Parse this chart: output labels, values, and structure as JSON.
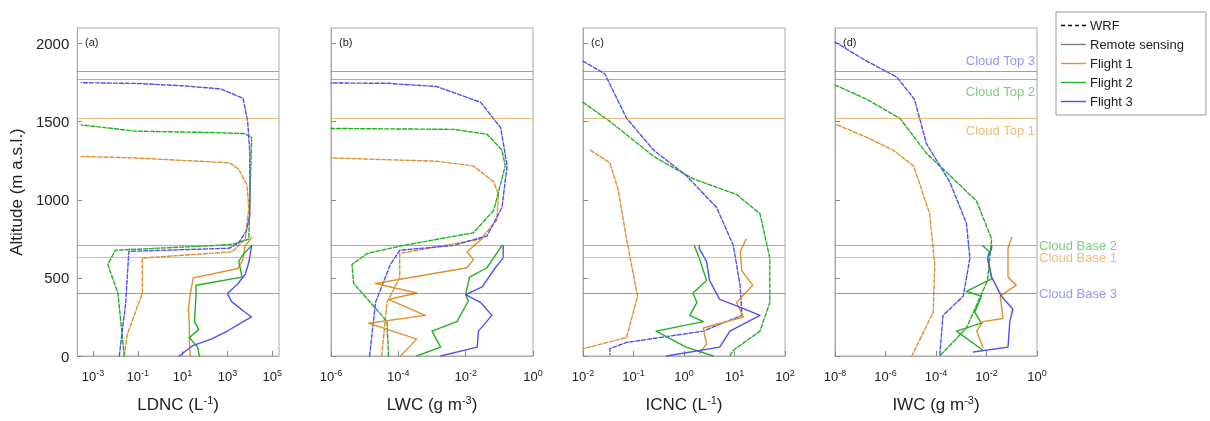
{
  "chart_data": [
    {
      "type": "line",
      "annotations": [
        "(a)"
      ],
      "xlabel": "LDNC (L$^{-1}$)",
      "ylabel": "Altitude (m a.s.l.)",
      "log": "x",
      "marker": "none",
      "grid": false,
      "legend": false,
      "xlim": [
        0.0002,
        200000
      ],
      "xticks": [
        {
          "value": 0.001,
          "label": "10$^{-3}$"
        },
        {
          "value": 0.1,
          "label": "10$^{-1}$"
        },
        {
          "value": 10,
          "label": "10$^{1}$"
        },
        {
          "value": 1000,
          "label": "10$^{3}$"
        },
        {
          "value": 100000,
          "label": "10$^{5}$"
        }
      ],
      "ylim": [
        0,
        2100
      ],
      "yticks": [
        0,
        500,
        1000,
        1500,
        2000
      ],
      "ref_lines": [
        {
          "axis": "y",
          "value": 1820,
          "color": "#5050f0"
        },
        {
          "axis": "y",
          "value": 1770,
          "color": "#22b022"
        },
        {
          "axis": "y",
          "value": 1520,
          "color": "#e0902c"
        },
        {
          "axis": "y",
          "value": 710,
          "color": "#22b022"
        },
        {
          "axis": "y",
          "value": 630,
          "color": "#e0902c"
        },
        {
          "axis": "y",
          "value": 400,
          "color": "#5050f0"
        }
      ],
      "series": [
        {
          "color": "#e0902c",
          "line_style": "dashed",
          "x": [
            0.025,
            0.034,
            0.16,
            0.16,
            1600,
            6300,
            9000,
            7400,
            3200,
            1200,
            0.07,
            0.0003
          ],
          "values": [
            0,
            138,
            403,
            627,
            667,
            749,
            952,
            1095,
            1196,
            1237,
            1268,
            1278
          ]
        },
        {
          "color": "#22b022",
          "line_style": "dashed",
          "x": [
            0.025,
            0.013,
            0.0046,
            0.01,
            300,
            1700,
            9000,
            12000,
            6000,
            300,
            0.07,
            0.0003
          ],
          "values": [
            0,
            403,
            586,
            677,
            708,
            715,
            749,
            1400,
            1424,
            1430,
            1440,
            1480
          ]
        },
        {
          "color": "#5050f0",
          "line_style": "dashed",
          "x": [
            0.015,
            0.022,
            0.029,
            0.04,
            1200,
            3000,
            7000,
            10000,
            10000,
            8000,
            5000,
            500,
            10,
            0.1,
            0.0003
          ],
          "values": [
            0,
            200,
            340,
            670,
            690,
            720,
            800,
            900,
            1300,
            1500,
            1650,
            1710,
            1730,
            1745,
            1750
          ]
        },
        {
          "color": "#e0902c",
          "line_style": "solid",
          "x": [
            22,
            20,
            20,
            18,
            22,
            30,
            3000,
            5000,
            6000,
            12000
          ],
          "values": [
            0,
            100,
            200,
            300,
            400,
            500,
            560,
            620,
            700,
            760
          ]
        },
        {
          "color": "#22b022",
          "line_style": "solid",
          "x": [
            56,
            47,
            20,
            52,
            34,
            40,
            40,
            4500,
            3200,
            5000,
            12000
          ],
          "values": [
            0,
            57,
            118,
            169,
            220,
            400,
            453,
            505,
            606,
            650,
            708
          ]
        },
        {
          "color": "#5050f0",
          "line_style": "solid",
          "x": [
            7,
            29,
            200,
            1000,
            5000,
            12000,
            5000,
            1500,
            1000,
            3000,
            6300,
            9000,
            12000
          ],
          "values": [
            0,
            67,
            110,
            160,
            220,
            250,
            290,
            350,
            400,
            464,
            525,
            600,
            708
          ]
        }
      ]
    },
    {
      "type": "line",
      "annotations": [
        "(b)"
      ],
      "xlabel": "LWC (g m$^{-3}$)",
      "log": "x",
      "marker": "none",
      "grid": false,
      "legend": false,
      "tick_labels": "x",
      "xlim": [
        1e-06,
        1
      ],
      "xticks": [
        {
          "value": 1e-06,
          "label": "10$^{-6}$"
        },
        {
          "value": 0.0001,
          "label": "10$^{-4}$"
        },
        {
          "value": 0.01,
          "label": "10$^{-2}$"
        },
        {
          "value": 1,
          "label": "10$^{0}$"
        }
      ],
      "ylim": [
        0,
        2100
      ],
      "yticks": [
        0,
        500,
        1000,
        1500,
        2000
      ],
      "ref_lines": [
        {
          "axis": "y",
          "value": 1820,
          "color": "#5050f0"
        },
        {
          "axis": "y",
          "value": 1770,
          "color": "#22b022"
        },
        {
          "axis": "y",
          "value": 1520,
          "color": "#e0902c"
        },
        {
          "axis": "y",
          "value": 710,
          "color": "#22b022"
        },
        {
          "axis": "y",
          "value": 630,
          "color": "#e0902c"
        },
        {
          "axis": "y",
          "value": 400,
          "color": "#5050f0"
        }
      ],
      "series": [
        {
          "color": "#e0902c",
          "line_style": "dashed",
          "x": [
            3.2e-05,
            4.6e-05,
            0.00011,
            0.00011,
            0.00011,
            0.028,
            0.085,
            0.094,
            0.068,
            0.017,
            0.0014,
            1e-06
          ],
          "values": [
            0,
            342,
            505,
            627,
            657,
            749,
            871,
            1034,
            1115,
            1217,
            1247,
            1268
          ]
        },
        {
          "color": "#22b022",
          "line_style": "dashed",
          "x": [
            5.1e-05,
            4.6e-05,
            1.5e-05,
            4.7e-06,
            4.2e-06,
            1.2e-05,
            0.00014,
            0.017,
            0.068,
            0.15,
            0.12,
            0.043,
            0.0044,
            1e-06
          ],
          "values": [
            0,
            220,
            342,
            464,
            586,
            657,
            708,
            789,
            932,
            1217,
            1318,
            1420,
            1451,
            1457
          ]
        },
        {
          "color": "#5050f0",
          "line_style": "dashed",
          "x": [
            1.4e-05,
            2.1e-05,
            5.8e-05,
            0.00011,
            0.0044,
            0.043,
            0.12,
            0.17,
            0.11,
            0.028,
            0.0014,
            4.6e-05,
            1e-06
          ],
          "values": [
            0,
            342,
            586,
            677,
            708,
            769,
            952,
            1217,
            1461,
            1624,
            1725,
            1746,
            1748
          ]
        },
        {
          "color": "#e0902c",
          "line_style": "solid",
          "x": [
            0.000115,
            0.00035,
            1.3e-05,
            0.00063,
            5.1e-05,
            0.00035,
            2.1e-05,
            0.011,
            0.017,
            0.011,
            0.034
          ],
          "values": [
            0,
            108,
            210,
            260,
            362,
            403,
            464,
            565,
            617,
            667,
            759
          ]
        },
        {
          "color": "#22b022",
          "line_style": "solid",
          "x": [
            0.00035,
            0.0018,
            0.001,
            0.0055,
            0.012,
            0.01,
            0.013,
            0.043,
            0.12
          ],
          "values": [
            0,
            57,
            159,
            220,
            352,
            393,
            505,
            565,
            708
          ]
        },
        {
          "color": "#5050f0",
          "line_style": "solid",
          "x": [
            0.0018,
            0.022,
            0.024,
            0.06,
            0.028,
            0.01,
            0.031,
            0.076,
            0.13,
            0.13
          ],
          "values": [
            0,
            57,
            159,
            260,
            342,
            393,
            443,
            565,
            627,
            708
          ]
        }
      ]
    },
    {
      "type": "line",
      "annotations": [
        "(c)"
      ],
      "xlabel": "ICNC (L$^{-1}$)",
      "log": "x",
      "marker": "none",
      "grid": false,
      "legend": false,
      "tick_labels": "x",
      "xlim": [
        0.01,
        100
      ],
      "xticks": [
        {
          "value": 0.01,
          "label": "10$^{-2}$"
        },
        {
          "value": 0.1,
          "label": "10$^{-1}$"
        },
        {
          "value": 1,
          "label": "10$^{0}$"
        },
        {
          "value": 10,
          "label": "10$^{1}$"
        },
        {
          "value": 100,
          "label": "10$^{2}$"
        }
      ],
      "ylim": [
        0,
        2100
      ],
      "yticks": [
        0,
        500,
        1000,
        1500,
        2000
      ],
      "ref_lines": [
        {
          "axis": "y",
          "value": 1820,
          "color": "#5050f0"
        },
        {
          "axis": "y",
          "value": 1770,
          "color": "#22b022"
        },
        {
          "axis": "y",
          "value": 1520,
          "color": "#e0902c"
        },
        {
          "axis": "y",
          "value": 710,
          "color": "#22b022"
        },
        {
          "axis": "y",
          "value": 630,
          "color": "#e0902c"
        },
        {
          "axis": "y",
          "value": 400,
          "color": "#5050f0"
        }
      ],
      "series": [
        {
          "color": "#e0902c",
          "line_style": "dashed",
          "x": [
            0.014,
            0.034,
            0.049,
            0.073,
            0.12,
            0.073,
            0.01
          ],
          "values": [
            1318,
            1237,
            1074,
            749,
            383,
            118,
            47
          ]
        },
        {
          "color": "#22b022",
          "line_style": "dashed",
          "x": [
            0.01,
            0.034,
            0.25,
            1.5,
            11,
            32,
            50,
            50,
            32,
            9.5,
            8
          ],
          "values": [
            1624,
            1502,
            1278,
            1135,
            1034,
            911,
            627,
            342,
            159,
            37,
            0
          ]
        },
        {
          "color": "#5050f0",
          "line_style": "dashed",
          "x": [
            0.01,
            0.027,
            0.073,
            0.25,
            1.1,
            4.4,
            9.5,
            13,
            14,
            2.4,
            0.073,
            0.034,
            0.034
          ],
          "values": [
            1888,
            1807,
            1522,
            1318,
            1156,
            952,
            708,
            444,
            260,
            159,
            87,
            47,
            10
          ]
        },
        {
          "color": "#e0902c",
          "line_style": "solid",
          "x": [
            2,
            2.8,
            2.4,
            15,
            11,
            23,
            14,
            13,
            17
          ],
          "values": [
            16,
            77,
            179,
            250,
            342,
            454,
            545,
            667,
            749
          ]
        },
        {
          "color": "#22b022",
          "line_style": "solid",
          "x": [
            3.8,
            1.1,
            0.28,
            2.4,
            1.3,
            1.8,
            1.5,
            2.8,
            2,
            1.6
          ],
          "values": [
            0,
            57,
            159,
            220,
            260,
            342,
            403,
            484,
            627,
            708
          ]
        },
        {
          "color": "#5050f0",
          "line_style": "solid",
          "x": [
            0.45,
            5.1,
            8.1,
            32,
            11,
            5.1,
            3.2,
            2.8,
            2,
            2
          ],
          "values": [
            0,
            57,
            159,
            260,
            321,
            362,
            484,
            606,
            688,
            708
          ]
        }
      ]
    },
    {
      "type": "line",
      "annotations": [
        "(d)",
        "WRF",
        "Remote sensing"
      ],
      "xlabel": "IWC (g m$^{-3}$)",
      "log": "x",
      "marker": "none",
      "grid": false,
      "legend": "top right",
      "tick_labels": "x",
      "xlim": [
        1e-08,
        1
      ],
      "xticks": [
        {
          "value": 1e-08,
          "label": "10$^{-8}$"
        },
        {
          "value": 1e-06,
          "label": "10$^{-6}$"
        },
        {
          "value": 0.0001,
          "label": "10$^{-4}$"
        },
        {
          "value": 0.01,
          "label": "10$^{-2}$"
        },
        {
          "value": 1,
          "label": "10$^{0}$"
        }
      ],
      "ylim": [
        0,
        2100
      ],
      "yticks": [
        0,
        500,
        1000,
        1500,
        2000
      ],
      "ref_lines": [
        {
          "axis": "y",
          "value": 1820,
          "label": "Cloud Top 3",
          "color": "#5050f0"
        },
        {
          "axis": "y",
          "value": 1770,
          "label": "Cloud Top 2",
          "color": "#22b022"
        },
        {
          "axis": "y",
          "value": 1520,
          "label": "Cloud Top 1",
          "color": "#e0902c"
        },
        {
          "axis": "y",
          "value": 710,
          "label": "Cloud Base 2",
          "color": "#22b022"
        },
        {
          "axis": "y",
          "value": 630,
          "label": "Cloud Base 1",
          "color": "#e0902c"
        },
        {
          "axis": "y",
          "value": 400,
          "label": "Cloud Base 3",
          "color": "#5050f0"
        }
      ],
      "series": [
        {
          "color": "#e0902c",
          "line_style": "dashed",
          "x": [
            1.2e-08,
            1.8e-07,
            2e-06,
            1.3e-05,
            5.6e-05,
            8.9e-05,
            7.8e-05,
            1.1e-05
          ],
          "values": [
            1481,
            1400,
            1318,
            1217,
            911,
            586,
            281,
            0
          ]
        },
        {
          "color": "#22b022",
          "line_style": "dashed",
          "x": [
            1e-08,
            1.8e-07,
            3.7e-06,
            4.2e-05,
            0.00026,
            0.004,
            0.016,
            0.011,
            0.0016,
            0.00014
          ],
          "values": [
            1735,
            1644,
            1522,
            1298,
            1176,
            993,
            749,
            484,
            179,
            0
          ]
        },
        {
          "color": "#5050f0",
          "line_style": "dashed",
          "x": [
            1e-08,
            1.8e-07,
            2.8e-06,
            1.4e-05,
            4.2e-05,
            0.00035,
            0.0016,
            0.0022,
            0.0012,
            0.00019,
            0.00014
          ],
          "values": [
            2010,
            1888,
            1786,
            1644,
            1359,
            1115,
            850,
            627,
            383,
            260,
            0
          ]
        },
        {
          "name": "Flight 1",
          "color": "#e0902c",
          "line_style": "solid",
          "x": [
            0.0072,
            0.0041,
            0.0072,
            0.045,
            0.035,
            0.15,
            0.071,
            0.071,
            0.1
          ],
          "values": [
            57,
            159,
            220,
            240,
            383,
            454,
            505,
            688,
            759
          ]
        },
        {
          "name": "Flight 2",
          "color": "#22b022",
          "line_style": "solid",
          "x": [
            0.0072,
            0.00065,
            0.0063,
            0.0034,
            0.0063,
            0.0016,
            0.016,
            0.011,
            0.013,
            0.0069
          ],
          "values": [
            37,
            159,
            210,
            281,
            383,
            413,
            494,
            627,
            667,
            708
          ]
        },
        {
          "name": "Flight 3",
          "color": "#5050f0",
          "line_style": "solid",
          "x": [
            0.003,
            0.071,
            0.084,
            0.11,
            0.039,
            0.016,
            0.011,
            0.016,
            0.016
          ],
          "values": [
            26,
            57,
            220,
            301,
            383,
            505,
            627,
            688,
            708
          ]
        }
      ]
    }
  ]
}
